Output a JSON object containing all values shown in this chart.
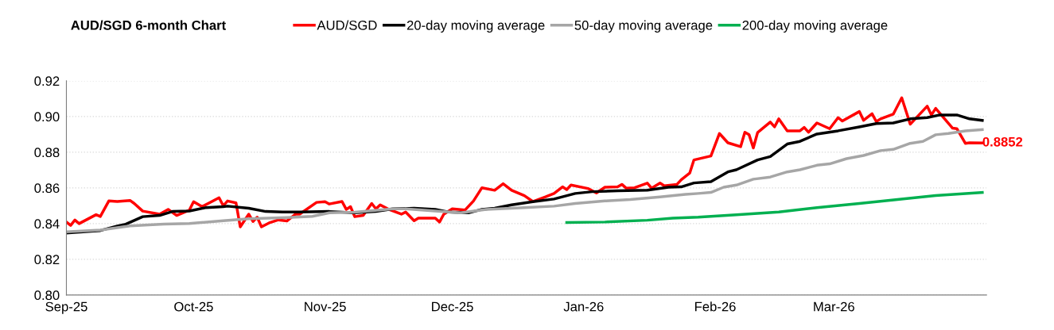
{
  "chart_data": {
    "type": "line",
    "title": "AUD/SGD 6-month Chart",
    "legend": "top",
    "grid": "y",
    "marker": "none",
    "line_style": "solid",
    "xlim": [
      "2025-09-01",
      "2026-04-06"
    ],
    "xticks": [
      {
        "value": "2025-09-01",
        "label": "Sep-25"
      },
      {
        "value": "2025-10-01",
        "label": "Oct-25"
      },
      {
        "value": "2025-11-01",
        "label": "Nov-25"
      },
      {
        "value": "2025-12-01",
        "label": "Dec-25"
      },
      {
        "value": "2026-01-01",
        "label": "Jan-26"
      },
      {
        "value": "2026-02-01",
        "label": "Feb-26"
      },
      {
        "value": "2026-03-01",
        "label": "Mar-26"
      }
    ],
    "ylim": [
      0.8,
      0.92
    ],
    "yticks": [
      {
        "value": 0.8,
        "label": "0.80"
      },
      {
        "value": 0.82,
        "label": "0.82"
      },
      {
        "value": 0.84,
        "label": "0.84"
      },
      {
        "value": 0.86,
        "label": "0.86"
      },
      {
        "value": 0.88,
        "label": "0.88"
      },
      {
        "value": 0.9,
        "label": "0.90"
      },
      {
        "value": 0.92,
        "label": "0.92"
      }
    ],
    "annotations": [
      {
        "text": "0.8852",
        "x": "2026-04-05",
        "y": 0.8852
      }
    ],
    "series": [
      {
        "name": "AUD/SGD",
        "color": "#ff0000",
        "x": [
          "2025-09-01",
          "2025-09-02",
          "2025-09-03",
          "2025-09-04",
          "2025-09-08",
          "2025-09-09",
          "2025-09-11",
          "2025-09-13",
          "2025-09-16",
          "2025-09-17",
          "2025-09-19",
          "2025-09-23",
          "2025-09-25",
          "2025-09-27",
          "2025-09-30",
          "2025-10-01",
          "2025-10-03",
          "2025-10-07",
          "2025-10-08",
          "2025-10-09",
          "2025-10-11",
          "2025-10-12",
          "2025-10-14",
          "2025-10-15",
          "2025-10-16",
          "2025-10-17",
          "2025-10-19",
          "2025-10-21",
          "2025-10-23",
          "2025-10-25",
          "2025-10-26",
          "2025-10-30",
          "2025-11-01",
          "2025-11-02",
          "2025-11-05",
          "2025-11-06",
          "2025-11-07",
          "2025-11-08",
          "2025-11-10",
          "2025-11-12",
          "2025-11-13",
          "2025-11-14",
          "2025-11-16",
          "2025-11-19",
          "2025-11-20",
          "2025-11-22",
          "2025-11-23",
          "2025-11-27",
          "2025-11-28",
          "2025-11-29",
          "2025-12-01",
          "2025-12-04",
          "2025-12-06",
          "2025-12-08",
          "2025-12-11",
          "2025-12-13",
          "2025-12-15",
          "2025-12-18",
          "2025-12-20",
          "2025-12-23",
          "2025-12-25",
          "2025-12-27",
          "2025-12-28",
          "2025-12-29",
          "2026-01-02",
          "2026-01-04",
          "2026-01-06",
          "2026-01-09",
          "2026-01-10",
          "2026-01-11",
          "2026-01-13",
          "2026-01-16",
          "2026-01-17",
          "2026-01-19",
          "2026-01-20",
          "2026-01-23",
          "2026-01-24",
          "2026-01-26",
          "2026-01-27",
          "2026-01-31",
          "2026-02-02",
          "2026-02-04",
          "2026-02-07",
          "2026-02-08",
          "2026-02-09",
          "2026-02-10",
          "2026-02-11",
          "2026-02-14",
          "2026-02-15",
          "2026-02-16",
          "2026-02-18",
          "2026-02-21",
          "2026-02-22",
          "2026-02-23",
          "2026-02-25",
          "2026-02-28",
          "2026-03-02",
          "2026-03-03",
          "2026-03-07",
          "2026-03-08",
          "2026-03-10",
          "2026-03-11",
          "2026-03-12",
          "2026-03-15",
          "2026-03-17",
          "2026-03-19",
          "2026-03-23",
          "2026-03-24",
          "2026-03-25",
          "2026-03-27",
          "2026-03-29",
          "2026-03-30",
          "2026-04-01",
          "2026-04-02",
          "2026-04-05"
        ],
        "values": [
          0.8409,
          0.839,
          0.842,
          0.84,
          0.845,
          0.844,
          0.8527,
          0.8524,
          0.853,
          0.8513,
          0.847,
          0.8453,
          0.848,
          0.8446,
          0.8476,
          0.8523,
          0.8495,
          0.8545,
          0.85,
          0.8527,
          0.8516,
          0.8382,
          0.8453,
          0.8412,
          0.8436,
          0.8382,
          0.8406,
          0.8421,
          0.8415,
          0.8453,
          0.8453,
          0.8519,
          0.8523,
          0.851,
          0.8524,
          0.848,
          0.8495,
          0.8439,
          0.8446,
          0.8513,
          0.8483,
          0.8505,
          0.848,
          0.8453,
          0.8465,
          0.8416,
          0.8431,
          0.8431,
          0.8409,
          0.8453,
          0.8483,
          0.8476,
          0.8527,
          0.8601,
          0.8587,
          0.8624,
          0.8587,
          0.8557,
          0.8524,
          0.855,
          0.8569,
          0.8606,
          0.8591,
          0.8616,
          0.8597,
          0.8572,
          0.8604,
          0.8606,
          0.862,
          0.8599,
          0.8601,
          0.8627,
          0.8599,
          0.8627,
          0.8612,
          0.862,
          0.8646,
          0.8683,
          0.8757,
          0.8779,
          0.8905,
          0.8853,
          0.8831,
          0.8912,
          0.8898,
          0.8824,
          0.891,
          0.8969,
          0.8942,
          0.8987,
          0.892,
          0.892,
          0.8939,
          0.8912,
          0.8964,
          0.8932,
          0.8994,
          0.8975,
          0.9028,
          0.8979,
          0.9016,
          0.8972,
          0.8987,
          0.9013,
          0.9105,
          0.8957,
          0.9058,
          0.9009,
          0.9046,
          0.899,
          0.8935,
          0.8932,
          0.885,
          0.8853,
          0.8852
        ]
      },
      {
        "name": "20-day moving average",
        "color": "#000000",
        "x": [
          "2025-09-01",
          "2025-09-09",
          "2025-09-13",
          "2025-09-15",
          "2025-09-19",
          "2025-09-23",
          "2025-09-26",
          "2025-09-30",
          "2025-10-04",
          "2025-10-08",
          "2025-10-09",
          "2025-10-14",
          "2025-10-18",
          "2025-10-22",
          "2025-10-26",
          "2025-11-02",
          "2025-11-08",
          "2025-11-13",
          "2025-11-17",
          "2025-11-22",
          "2025-11-27",
          "2025-11-30",
          "2025-12-05",
          "2025-12-08",
          "2025-12-11",
          "2025-12-15",
          "2025-12-20",
          "2025-12-25",
          "2025-12-30",
          "2026-01-03",
          "2026-01-09",
          "2026-01-16",
          "2026-01-21",
          "2026-01-24",
          "2026-01-27",
          "2026-01-31",
          "2026-02-04",
          "2026-02-06",
          "2026-02-11",
          "2026-02-14",
          "2026-02-18",
          "2026-02-21",
          "2026-02-25",
          "2026-03-02",
          "2026-03-07",
          "2026-03-11",
          "2026-03-15",
          "2026-03-19",
          "2026-03-23",
          "2026-03-26",
          "2026-03-30",
          "2026-04-02",
          "2026-04-05"
        ],
        "values": [
          0.8347,
          0.8361,
          0.8387,
          0.8397,
          0.8439,
          0.8446,
          0.8468,
          0.8471,
          0.849,
          0.8495,
          0.8498,
          0.8486,
          0.8468,
          0.8465,
          0.8465,
          0.8468,
          0.8461,
          0.8468,
          0.8483,
          0.8486,
          0.848,
          0.8465,
          0.8461,
          0.848,
          0.8486,
          0.8505,
          0.8523,
          0.8538,
          0.8569,
          0.8579,
          0.8584,
          0.8587,
          0.8604,
          0.8606,
          0.8628,
          0.8635,
          0.869,
          0.8702,
          0.8757,
          0.8776,
          0.8846,
          0.8861,
          0.8902,
          0.892,
          0.8942,
          0.8961,
          0.8964,
          0.8987,
          0.8994,
          0.9009,
          0.9009,
          0.8987,
          0.8978
        ]
      },
      {
        "name": "50-day moving average",
        "color": "#a6a6a6",
        "x": [
          "2025-09-01",
          "2025-09-09",
          "2025-09-16",
          "2025-09-24",
          "2025-09-30",
          "2025-10-08",
          "2025-10-14",
          "2025-10-23",
          "2025-10-29",
          "2025-11-02",
          "2025-11-08",
          "2025-11-17",
          "2025-11-20",
          "2025-11-27",
          "2025-12-03",
          "2025-12-09",
          "2025-12-18",
          "2025-12-25",
          "2025-12-30",
          "2026-01-06",
          "2026-01-12",
          "2026-01-19",
          "2026-01-25",
          "2026-01-28",
          "2026-01-31",
          "2026-02-03",
          "2026-02-06",
          "2026-02-10",
          "2026-02-14",
          "2026-02-18",
          "2026-02-21",
          "2026-02-25",
          "2026-02-28",
          "2026-03-04",
          "2026-03-08",
          "2026-03-12",
          "2026-03-15",
          "2026-03-19",
          "2026-03-22",
          "2026-03-25",
          "2026-03-28",
          "2026-04-01",
          "2026-04-05"
        ],
        "values": [
          0.8354,
          0.8364,
          0.8387,
          0.8397,
          0.8401,
          0.8416,
          0.8427,
          0.8434,
          0.8441,
          0.8461,
          0.8464,
          0.8483,
          0.8483,
          0.8471,
          0.8461,
          0.848,
          0.849,
          0.8498,
          0.8513,
          0.8527,
          0.8535,
          0.855,
          0.8564,
          0.8569,
          0.8575,
          0.8604,
          0.8616,
          0.8649,
          0.8661,
          0.869,
          0.8702,
          0.8727,
          0.8735,
          0.8764,
          0.8782,
          0.8809,
          0.8816,
          0.885,
          0.8861,
          0.8898,
          0.8905,
          0.892,
          0.8927
        ]
      },
      {
        "name": "200-day moving average",
        "color": "#00b050",
        "x": [
          "2025-12-28",
          "2026-01-06",
          "2026-01-16",
          "2026-01-22",
          "2026-01-28",
          "2026-02-06",
          "2026-02-16",
          "2026-02-25",
          "2026-03-07",
          "2026-03-16",
          "2026-03-25",
          "2026-04-05"
        ],
        "values": [
          0.8406,
          0.8409,
          0.8419,
          0.8431,
          0.8436,
          0.845,
          0.8465,
          0.849,
          0.8513,
          0.8535,
          0.8557,
          0.8575
        ]
      }
    ]
  }
}
